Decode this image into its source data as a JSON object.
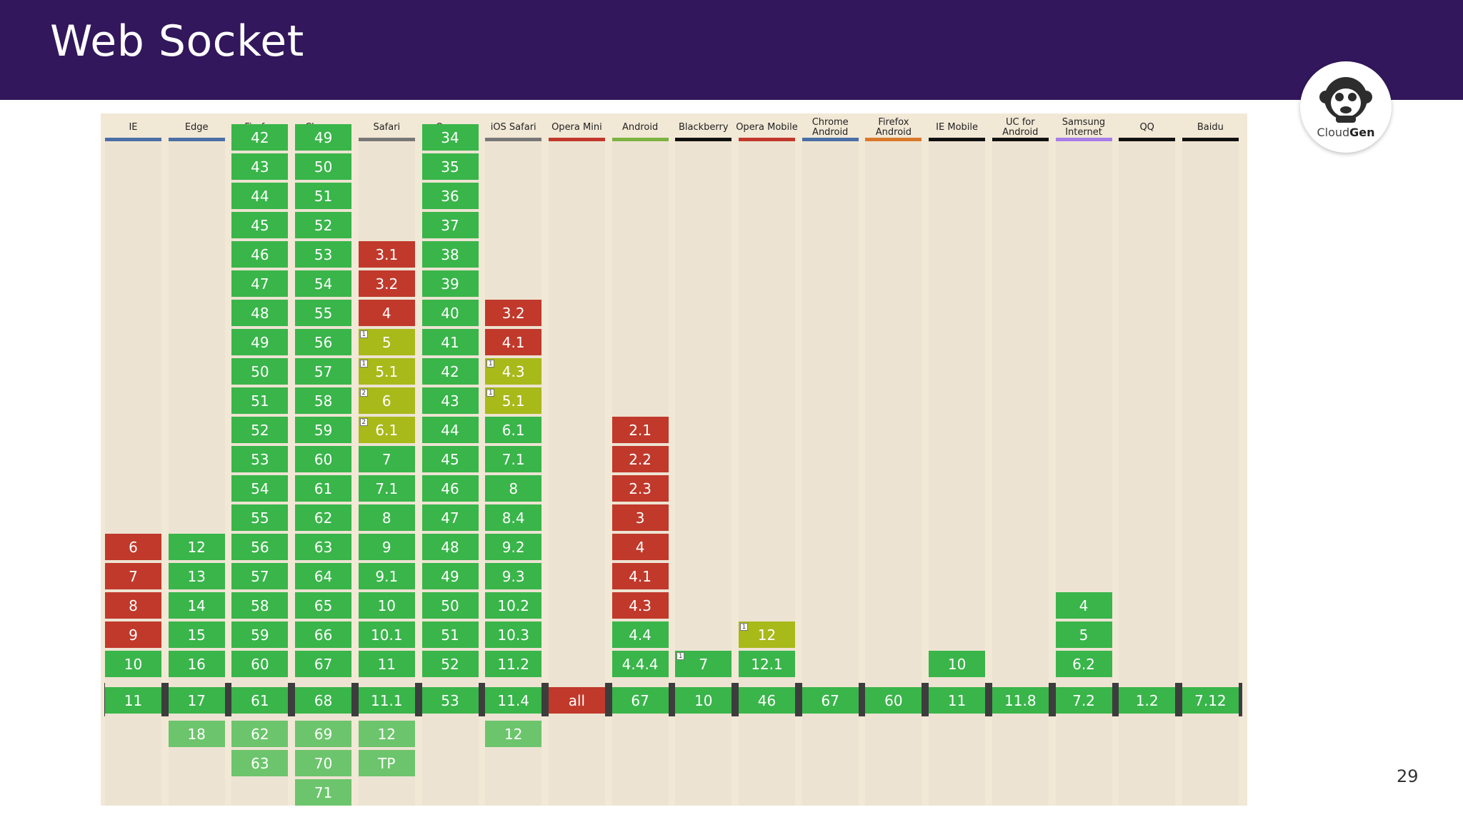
{
  "slide": {
    "title": "Web Socket",
    "page_number": "29",
    "logo_text_light": "Cloud",
    "logo_text_bold": "Gen"
  },
  "colors": {
    "header": "#32175c",
    "supported": "#39b54a",
    "unsupported": "#c0392b",
    "partial": "#a8b91a",
    "future": "#6cc56c"
  },
  "browsers": [
    {
      "name": "IE",
      "underline": "#4a6fa5",
      "rows": [
        {
          "v": "6",
          "s": "n"
        },
        {
          "v": "7",
          "s": "n"
        },
        {
          "v": "8",
          "s": "n"
        },
        {
          "v": "9",
          "s": "n"
        },
        {
          "v": "10",
          "s": "y"
        }
      ],
      "current": {
        "v": "11",
        "s": "y"
      },
      "future": []
    },
    {
      "name": "Edge",
      "underline": "#4a6fa5",
      "rows": [
        {
          "v": "12",
          "s": "y"
        },
        {
          "v": "13",
          "s": "y"
        },
        {
          "v": "14",
          "s": "y"
        },
        {
          "v": "15",
          "s": "y"
        },
        {
          "v": "16",
          "s": "y"
        }
      ],
      "current": {
        "v": "17",
        "s": "y"
      },
      "future": [
        {
          "v": "18",
          "s": "y"
        }
      ]
    },
    {
      "name": "Firefox",
      "underline": "#c0392b",
      "rows": [
        {
          "v": "42",
          "s": "y"
        },
        {
          "v": "43",
          "s": "y"
        },
        {
          "v": "44",
          "s": "y"
        },
        {
          "v": "45",
          "s": "y"
        },
        {
          "v": "46",
          "s": "y"
        },
        {
          "v": "47",
          "s": "y"
        },
        {
          "v": "48",
          "s": "y"
        },
        {
          "v": "49",
          "s": "y"
        },
        {
          "v": "50",
          "s": "y"
        },
        {
          "v": "51",
          "s": "y"
        },
        {
          "v": "52",
          "s": "y"
        },
        {
          "v": "53",
          "s": "y"
        },
        {
          "v": "54",
          "s": "y"
        },
        {
          "v": "55",
          "s": "y"
        },
        {
          "v": "56",
          "s": "y"
        },
        {
          "v": "57",
          "s": "y"
        },
        {
          "v": "58",
          "s": "y"
        },
        {
          "v": "59",
          "s": "y"
        },
        {
          "v": "60",
          "s": "y"
        }
      ],
      "current": {
        "v": "61",
        "s": "y"
      },
      "future": [
        {
          "v": "62",
          "s": "y"
        },
        {
          "v": "63",
          "s": "y"
        }
      ]
    },
    {
      "name": "Chrome",
      "underline": "#4a6fa5",
      "rows": [
        {
          "v": "49",
          "s": "y"
        },
        {
          "v": "50",
          "s": "y"
        },
        {
          "v": "51",
          "s": "y"
        },
        {
          "v": "52",
          "s": "y"
        },
        {
          "v": "53",
          "s": "y"
        },
        {
          "v": "54",
          "s": "y"
        },
        {
          "v": "55",
          "s": "y"
        },
        {
          "v": "56",
          "s": "y"
        },
        {
          "v": "57",
          "s": "y"
        },
        {
          "v": "58",
          "s": "y"
        },
        {
          "v": "59",
          "s": "y"
        },
        {
          "v": "60",
          "s": "y"
        },
        {
          "v": "61",
          "s": "y"
        },
        {
          "v": "62",
          "s": "y"
        },
        {
          "v": "63",
          "s": "y"
        },
        {
          "v": "64",
          "s": "y"
        },
        {
          "v": "65",
          "s": "y"
        },
        {
          "v": "66",
          "s": "y"
        },
        {
          "v": "67",
          "s": "y"
        }
      ],
      "current": {
        "v": "68",
        "s": "y"
      },
      "future": [
        {
          "v": "69",
          "s": "y"
        },
        {
          "v": "70",
          "s": "y"
        },
        {
          "v": "71",
          "s": "y"
        }
      ]
    },
    {
      "name": "Safari",
      "underline": "#777777",
      "rows": [
        {
          "v": "3.1",
          "s": "n"
        },
        {
          "v": "3.2",
          "s": "n"
        },
        {
          "v": "4",
          "s": "n"
        },
        {
          "v": "5",
          "s": "a",
          "note": "1"
        },
        {
          "v": "5.1",
          "s": "a",
          "note": "1"
        },
        {
          "v": "6",
          "s": "a",
          "note": "2"
        },
        {
          "v": "6.1",
          "s": "a",
          "note": "2"
        },
        {
          "v": "7",
          "s": "y"
        },
        {
          "v": "7.1",
          "s": "y"
        },
        {
          "v": "8",
          "s": "y"
        },
        {
          "v": "9",
          "s": "y"
        },
        {
          "v": "9.1",
          "s": "y"
        },
        {
          "v": "10",
          "s": "y"
        },
        {
          "v": "10.1",
          "s": "y"
        },
        {
          "v": "11",
          "s": "y"
        }
      ],
      "current": {
        "v": "11.1",
        "s": "y"
      },
      "future": [
        {
          "v": "12",
          "s": "y"
        },
        {
          "v": "TP",
          "s": "y"
        }
      ]
    },
    {
      "name": "Opera",
      "underline": "#c0392b",
      "rows": [
        {
          "v": "34",
          "s": "y"
        },
        {
          "v": "35",
          "s": "y"
        },
        {
          "v": "36",
          "s": "y"
        },
        {
          "v": "37",
          "s": "y"
        },
        {
          "v": "38",
          "s": "y"
        },
        {
          "v": "39",
          "s": "y"
        },
        {
          "v": "40",
          "s": "y"
        },
        {
          "v": "41",
          "s": "y"
        },
        {
          "v": "42",
          "s": "y"
        },
        {
          "v": "43",
          "s": "y"
        },
        {
          "v": "44",
          "s": "y"
        },
        {
          "v": "45",
          "s": "y"
        },
        {
          "v": "46",
          "s": "y"
        },
        {
          "v": "47",
          "s": "y"
        },
        {
          "v": "48",
          "s": "y"
        },
        {
          "v": "49",
          "s": "y"
        },
        {
          "v": "50",
          "s": "y"
        },
        {
          "v": "51",
          "s": "y"
        },
        {
          "v": "52",
          "s": "y"
        }
      ],
      "current": {
        "v": "53",
        "s": "y"
      },
      "future": []
    },
    {
      "name": "iOS Safari",
      "underline": "#777777",
      "rows": [
        {
          "v": "3.2",
          "s": "n"
        },
        {
          "v": "4.1",
          "s": "n"
        },
        {
          "v": "4.3",
          "s": "a",
          "note": "1"
        },
        {
          "v": "5.1",
          "s": "a",
          "note": "1"
        },
        {
          "v": "6.1",
          "s": "y"
        },
        {
          "v": "7.1",
          "s": "y"
        },
        {
          "v": "8",
          "s": "y"
        },
        {
          "v": "8.4",
          "s": "y"
        },
        {
          "v": "9.2",
          "s": "y"
        },
        {
          "v": "9.3",
          "s": "y"
        },
        {
          "v": "10.2",
          "s": "y"
        },
        {
          "v": "10.3",
          "s": "y"
        },
        {
          "v": "11.2",
          "s": "y"
        }
      ],
      "current": {
        "v": "11.4",
        "s": "y"
      },
      "future": [
        {
          "v": "12",
          "s": "y"
        }
      ]
    },
    {
      "name": "Opera Mini",
      "underline": "#c0392b",
      "rows": [],
      "current": {
        "v": "all",
        "s": "n"
      },
      "future": []
    },
    {
      "name": "Android",
      "underline": "#7cb342",
      "rows": [
        {
          "v": "2.1",
          "s": "n"
        },
        {
          "v": "2.2",
          "s": "n"
        },
        {
          "v": "2.3",
          "s": "n"
        },
        {
          "v": "3",
          "s": "n"
        },
        {
          "v": "4",
          "s": "n"
        },
        {
          "v": "4.1",
          "s": "n"
        },
        {
          "v": "4.3",
          "s": "n"
        },
        {
          "v": "4.4",
          "s": "y"
        },
        {
          "v": "4.4.4",
          "s": "y"
        }
      ],
      "current": {
        "v": "67",
        "s": "y"
      },
      "future": []
    },
    {
      "name": "Blackberry",
      "underline": "#111111",
      "rows": [
        {
          "v": "7",
          "s": "y",
          "note": "1"
        }
      ],
      "current": {
        "v": "10",
        "s": "y"
      },
      "future": []
    },
    {
      "name": "Opera Mobile",
      "underline": "#c0392b",
      "rows": [
        {
          "v": "12",
          "s": "a",
          "note": "1"
        },
        {
          "v": "12.1",
          "s": "y"
        }
      ],
      "current": {
        "v": "46",
        "s": "y"
      },
      "future": []
    },
    {
      "name": "Chrome Android",
      "underline": "#4a6fa5",
      "rows": [],
      "current": {
        "v": "67",
        "s": "y"
      },
      "future": []
    },
    {
      "name": "Firefox Android",
      "underline": "#d9792b",
      "rows": [],
      "current": {
        "v": "60",
        "s": "y"
      },
      "future": []
    },
    {
      "name": "IE Mobile",
      "underline": "#111111",
      "rows": [
        {
          "v": "10",
          "s": "y"
        }
      ],
      "current": {
        "v": "11",
        "s": "y"
      },
      "future": []
    },
    {
      "name": "UC for Android",
      "underline": "#111111",
      "rows": [],
      "current": {
        "v": "11.8",
        "s": "y"
      },
      "future": []
    },
    {
      "name": "Samsung Internet",
      "underline": "#a77de8",
      "rows": [
        {
          "v": "4",
          "s": "y"
        },
        {
          "v": "5",
          "s": "y"
        },
        {
          "v": "6.2",
          "s": "y"
        }
      ],
      "current": {
        "v": "7.2",
        "s": "y"
      },
      "future": []
    },
    {
      "name": "QQ",
      "underline": "#111111",
      "rows": [],
      "current": {
        "v": "1.2",
        "s": "y"
      },
      "future": []
    },
    {
      "name": "Baidu",
      "underline": "#111111",
      "rows": [],
      "current": {
        "v": "7.12",
        "s": "y"
      },
      "future": []
    }
  ]
}
